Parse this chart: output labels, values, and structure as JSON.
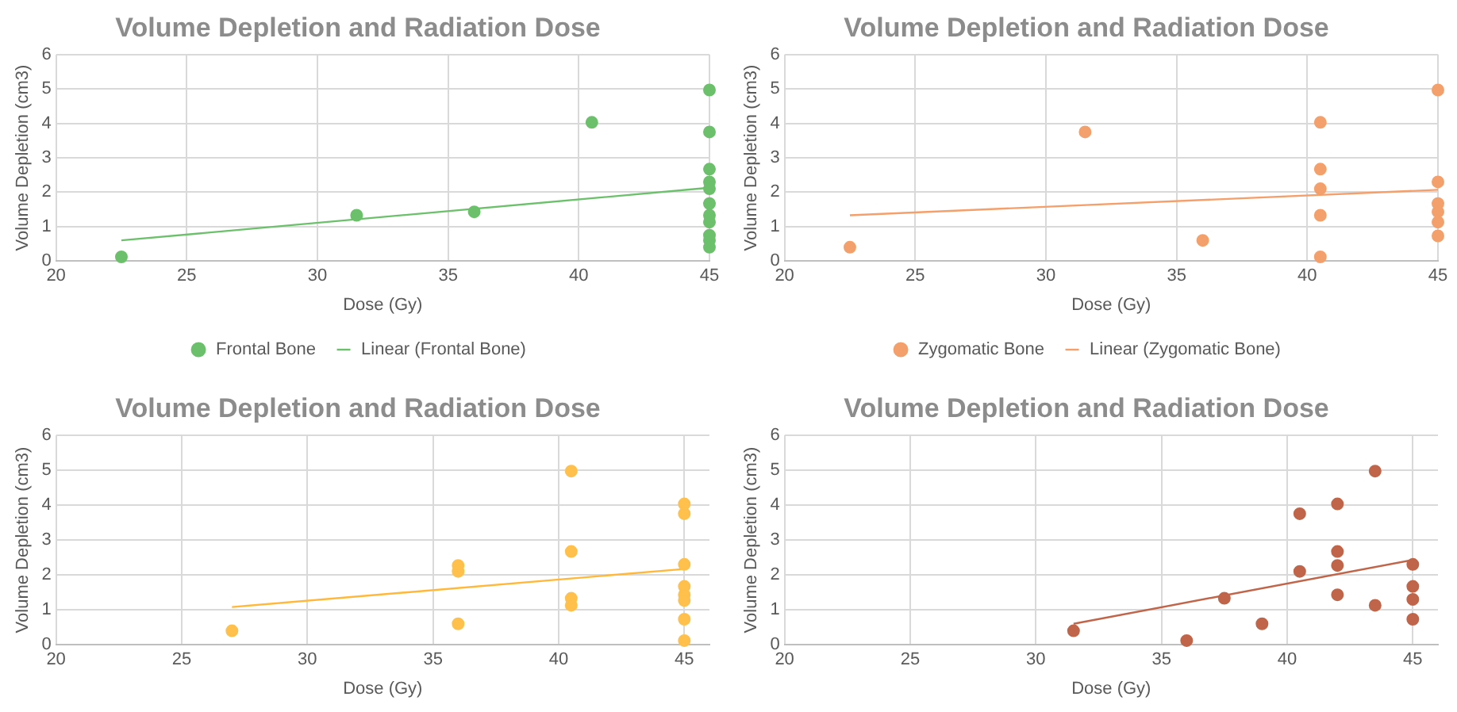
{
  "chart_data": [
    {
      "type": "scatter",
      "title": "Volume Depletion and Radiation Dose",
      "xlabel": "Dose (Gy)",
      "ylabel": "Volume Depletion (cm3)",
      "xlim": [
        20,
        45
      ],
      "xticks": [
        20,
        25,
        30,
        35,
        40,
        45
      ],
      "ylim": [
        0,
        6
      ],
      "yticks": [
        0,
        1,
        2,
        3,
        4,
        5,
        6
      ],
      "grid": true,
      "legend": "bottom",
      "marker": "circle",
      "series": [
        {
          "name": "Frontal Bone",
          "color": "#6cc06c",
          "x": [
            22.5,
            31.5,
            36,
            40.5,
            45,
            45,
            45,
            45,
            45,
            45,
            45,
            45,
            45,
            45,
            45
          ],
          "values": [
            0.12,
            1.33,
            1.43,
            4.03,
            4.97,
            3.75,
            2.67,
            2.3,
            2.1,
            1.67,
            1.33,
            1.13,
            0.75,
            0.6,
            0.4
          ]
        },
        {
          "name": "Linear (Frontal Bone)",
          "type": "line",
          "marker": "none",
          "color": "#6cc06c",
          "x": [
            22.5,
            45
          ],
          "values": [
            0.6,
            2.13
          ]
        }
      ]
    },
    {
      "type": "scatter",
      "title": "Volume Depletion and Radiation Dose",
      "xlabel": "Dose (Gy)",
      "ylabel": "Volume Depletion (cm3)",
      "xlim": [
        20,
        45
      ],
      "xticks": [
        20,
        25,
        30,
        35,
        40,
        45
      ],
      "ylim": [
        0,
        6
      ],
      "yticks": [
        0,
        1,
        2,
        3,
        4,
        5,
        6
      ],
      "grid": true,
      "legend": "bottom",
      "marker": "circle",
      "series": [
        {
          "name": "Zygomatic Bone",
          "color": "#f4a06c",
          "x": [
            22.5,
            31.5,
            36,
            40.5,
            40.5,
            40.5,
            40.5,
            40.5,
            45,
            45,
            45,
            45,
            45,
            45
          ],
          "values": [
            0.4,
            3.75,
            0.6,
            4.03,
            2.67,
            2.1,
            1.33,
            0.12,
            4.97,
            2.3,
            1.67,
            1.43,
            1.13,
            0.73
          ]
        },
        {
          "name": "Linear (Zygomatic Bone)",
          "type": "line",
          "marker": "none",
          "color": "#f4a06c",
          "x": [
            22.5,
            45
          ],
          "values": [
            1.33,
            2.07
          ]
        }
      ]
    },
    {
      "type": "scatter",
      "title": "Volume Depletion and Radiation Dose",
      "xlabel": "Dose (Gy)",
      "ylabel": "Volume Depletion (cm3)",
      "xlim": [
        20,
        46
      ],
      "xticks": [
        20,
        25,
        30,
        35,
        40,
        45
      ],
      "ylim": [
        0,
        6
      ],
      "yticks": [
        0,
        1,
        2,
        3,
        4,
        5,
        6
      ],
      "grid": true,
      "marker": "circle",
      "series": [
        {
          "color": "#ffc04c",
          "x": [
            27,
            36,
            36,
            36,
            40.5,
            40.5,
            40.5,
            40.5,
            45,
            45,
            45,
            45,
            45,
            45,
            45,
            45
          ],
          "values": [
            0.4,
            0.6,
            2.1,
            2.27,
            4.97,
            2.67,
            1.33,
            1.13,
            4.03,
            3.75,
            2.3,
            1.67,
            1.43,
            1.27,
            0.73,
            0.12
          ]
        },
        {
          "type": "line",
          "marker": "none",
          "color": "#ffb83a",
          "x": [
            27,
            45
          ],
          "values": [
            1.08,
            2.17
          ]
        }
      ]
    },
    {
      "type": "scatter",
      "title": "Volume Depletion and Radiation Dose",
      "xlabel": "Dose (Gy)",
      "ylabel": "Volume Depletion (cm3)",
      "xlim": [
        20,
        46
      ],
      "xticks": [
        20,
        25,
        30,
        35,
        40,
        45
      ],
      "ylim": [
        0,
        6
      ],
      "yticks": [
        0,
        1,
        2,
        3,
        4,
        5,
        6
      ],
      "grid": true,
      "marker": "circle",
      "series": [
        {
          "color": "#c0654a",
          "x": [
            31.5,
            36,
            37.5,
            39,
            40.5,
            40.5,
            42,
            42,
            42,
            42,
            43.5,
            43.5,
            45,
            45,
            45,
            45
          ],
          "values": [
            0.4,
            0.12,
            1.33,
            0.6,
            3.75,
            2.1,
            4.03,
            2.67,
            2.27,
            1.43,
            4.97,
            1.13,
            2.3,
            1.67,
            1.3,
            0.73
          ]
        },
        {
          "type": "line",
          "marker": "none",
          "color": "#c0654a",
          "x": [
            31.5,
            45
          ],
          "values": [
            0.6,
            2.43
          ]
        }
      ]
    }
  ]
}
